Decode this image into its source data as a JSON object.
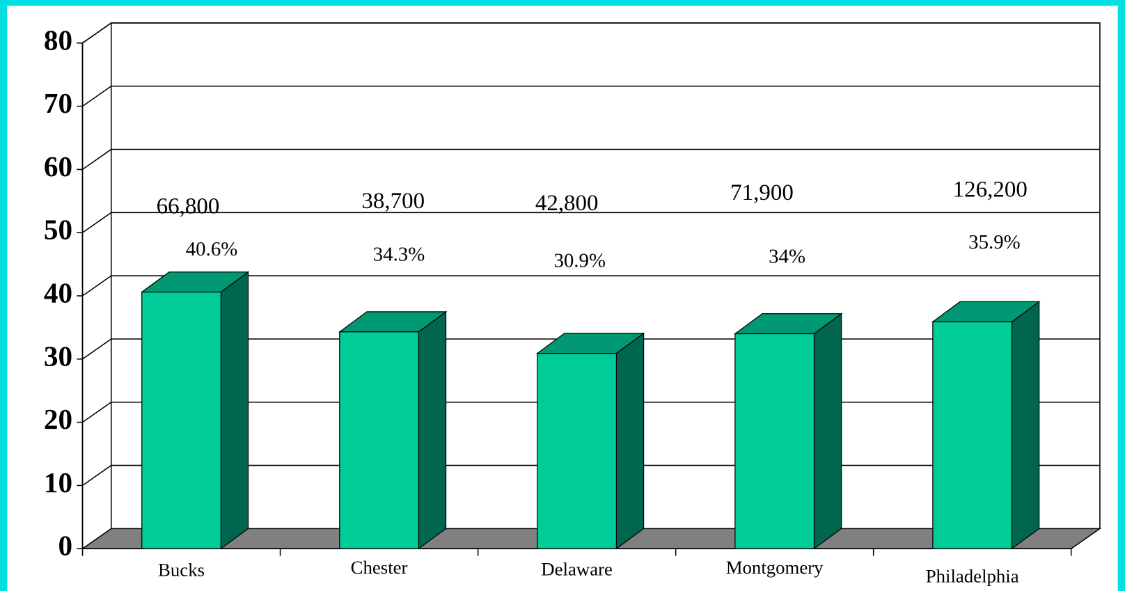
{
  "chart_data": {
    "type": "bar3d",
    "categories": [
      "Bucks",
      "Chester",
      "Delaware",
      "Montgomery",
      "Philadelphia"
    ],
    "values": [
      40.6,
      34.3,
      30.9,
      34,
      35.9
    ],
    "value_labels": [
      "40.6%",
      "34.3%",
      "30.9%",
      "34%",
      "35.9%"
    ],
    "annotations": [
      "66,800",
      "38,700",
      "42,800",
      "71,900",
      "126,200"
    ],
    "color": "#00cc99",
    "top_color": "#009973",
    "side_color": "#006650",
    "ylim": [
      0,
      80
    ],
    "yticks": [
      0,
      10,
      20,
      30,
      40,
      50,
      60,
      70,
      80
    ],
    "grid": true
  }
}
